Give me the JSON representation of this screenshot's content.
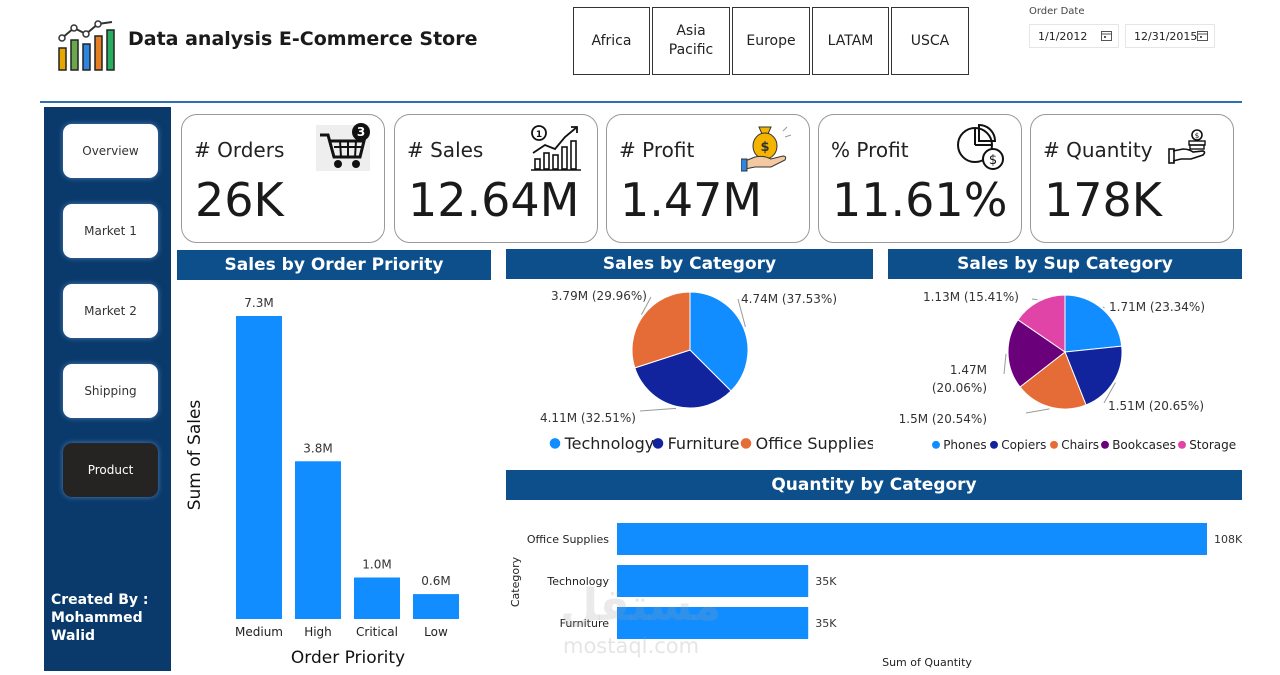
{
  "header": {
    "title": "Data analysis E-Commerce Store",
    "regions": [
      "Africa",
      "Asia\nPacific",
      "Europe",
      "LATAM",
      "USCA"
    ],
    "date_label": "Order Date",
    "date_from": "1/1/2012",
    "date_to": "12/31/2015",
    "logo_icon": "bar-chart-logo-icon"
  },
  "sidebar": {
    "items": [
      {
        "label": "Overview",
        "active": false
      },
      {
        "label": "Market 1",
        "active": false
      },
      {
        "label": "Market 2",
        "active": false
      },
      {
        "label": "Shipping",
        "active": false
      },
      {
        "label": "Product",
        "active": true
      }
    ],
    "credit": "Created By :\nMohammed\nWalid"
  },
  "kpis": [
    {
      "label": "# Orders",
      "value": "26K",
      "icon": "shopping-cart-icon",
      "badge": "3"
    },
    {
      "label": "# Sales",
      "value": "12.64M",
      "icon": "growth-chart-icon"
    },
    {
      "label": "# Profit",
      "value": "1.47M",
      "icon": "money-bag-hand-icon"
    },
    {
      "label": "% Profit",
      "value": "11.61%",
      "icon": "pie-dollar-icon"
    },
    {
      "label": "# Quantity",
      "value": "178K",
      "icon": "coin-hand-icon"
    }
  ],
  "colors": {
    "primary_blue": "#118DFF",
    "navy": "#12239E",
    "orange": "#E66C37",
    "purple": "#6B007B",
    "pink": "#E044A7",
    "header_blue": "#0D4F8B",
    "sidebar": "#0A3A6B"
  },
  "watermark": {
    "text": "مستقل",
    "sub": "mostaql.com"
  },
  "chart_data": [
    {
      "type": "bar",
      "title": "Sales by Order Priority",
      "xlabel": "Order Priority",
      "ylabel": "Sum of Sales",
      "categories": [
        "Medium",
        "High",
        "Critical",
        "Low"
      ],
      "values": [
        7.3,
        3.8,
        1.0,
        0.6
      ],
      "value_labels": [
        "7.3M",
        "3.8M",
        "1.0M",
        "0.6M"
      ],
      "unit": "M",
      "ylim": [
        0,
        7.3
      ],
      "grid": false,
      "color": "#118DFF"
    },
    {
      "type": "pie",
      "title": "Sales by Category",
      "series": [
        {
          "name": "Technology",
          "value": 4.74,
          "label": "4.74M (37.53%)",
          "color": "#118DFF"
        },
        {
          "name": "Furniture",
          "value": 4.11,
          "label": "4.11M (32.51%)",
          "color": "#12239E"
        },
        {
          "name": "Office Supplies",
          "value": 3.79,
          "label": "3.79M (29.96%)",
          "color": "#E66C37"
        }
      ],
      "legend_position": "bottom"
    },
    {
      "type": "pie",
      "title": "Sales by Sup Category",
      "series": [
        {
          "name": "Phones",
          "value": 1.71,
          "label": "1.71M (23.34%)",
          "color": "#118DFF"
        },
        {
          "name": "Copiers",
          "value": 1.51,
          "label": "1.51M (20.65%)",
          "color": "#12239E"
        },
        {
          "name": "Chairs",
          "value": 1.5,
          "label": "1.5M (20.54%)",
          "color": "#E66C37"
        },
        {
          "name": "Bookcases",
          "value": 1.47,
          "label": "1.47M\n(20.06%)",
          "color": "#6B007B"
        },
        {
          "name": "Storage",
          "value": 1.13,
          "label": "1.13M (15.41%)",
          "color": "#E044A7"
        }
      ],
      "legend_position": "bottom"
    },
    {
      "type": "bar",
      "orientation": "horizontal",
      "title": "Quantity by Category",
      "xlabel": "Sum of Quantity",
      "ylabel": "Category",
      "categories": [
        "Office Supplies",
        "Technology",
        "Furniture"
      ],
      "values": [
        108,
        35,
        35
      ],
      "value_labels": [
        "108K",
        "35K",
        "35K"
      ],
      "unit": "K",
      "xlim": [
        0,
        108
      ],
      "grid": false,
      "color": "#118DFF"
    }
  ]
}
